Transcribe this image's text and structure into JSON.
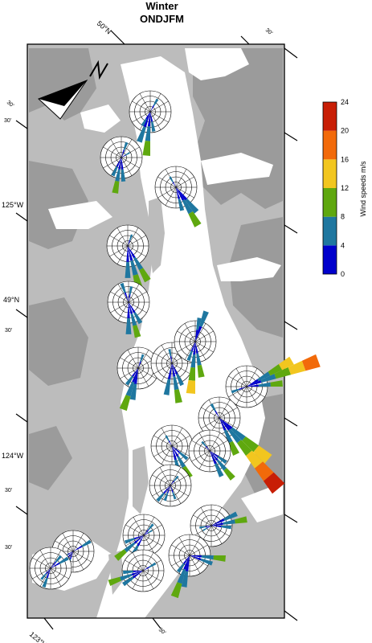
{
  "title": "Winter",
  "subtitle": "ONDJFM",
  "graticule_labels": {
    "top_50N": "50°N",
    "top_30_a": "30'",
    "top_30_b": "30'",
    "left_30_a": "30'",
    "left_30_b": "30'",
    "left_125W": "125°W",
    "left_49N": "49°N",
    "left_30_c": "30'",
    "left_124W": "124°W",
    "left_30_d": "30'",
    "left_30_e": "30'",
    "bottom_123W": "123°W",
    "bottom_30": "30'"
  },
  "north_arrow": {
    "icon": "north-arrow-icon",
    "letter": "N"
  },
  "colorbar": {
    "label": "Wind speeds m/s",
    "ticks": [
      "24",
      "20",
      "16",
      "12",
      "8",
      "4",
      "0"
    ],
    "bins": [
      {
        "min": 0,
        "max": 4,
        "color": "#0000cc"
      },
      {
        "min": 4,
        "max": 8,
        "color": "#1f77a0"
      },
      {
        "min": 8,
        "max": 12,
        "color": "#5fa80f"
      },
      {
        "min": 12,
        "max": 16,
        "color": "#f2c61f"
      },
      {
        "min": 16,
        "max": 20,
        "color": "#f26a0a"
      },
      {
        "min": 20,
        "max": 24,
        "color": "#c81e05"
      }
    ]
  },
  "colors": {
    "land": "#bcbcbc",
    "highland": "#9b9b9b",
    "water": "#ffffff",
    "frame": "#000000"
  }
}
